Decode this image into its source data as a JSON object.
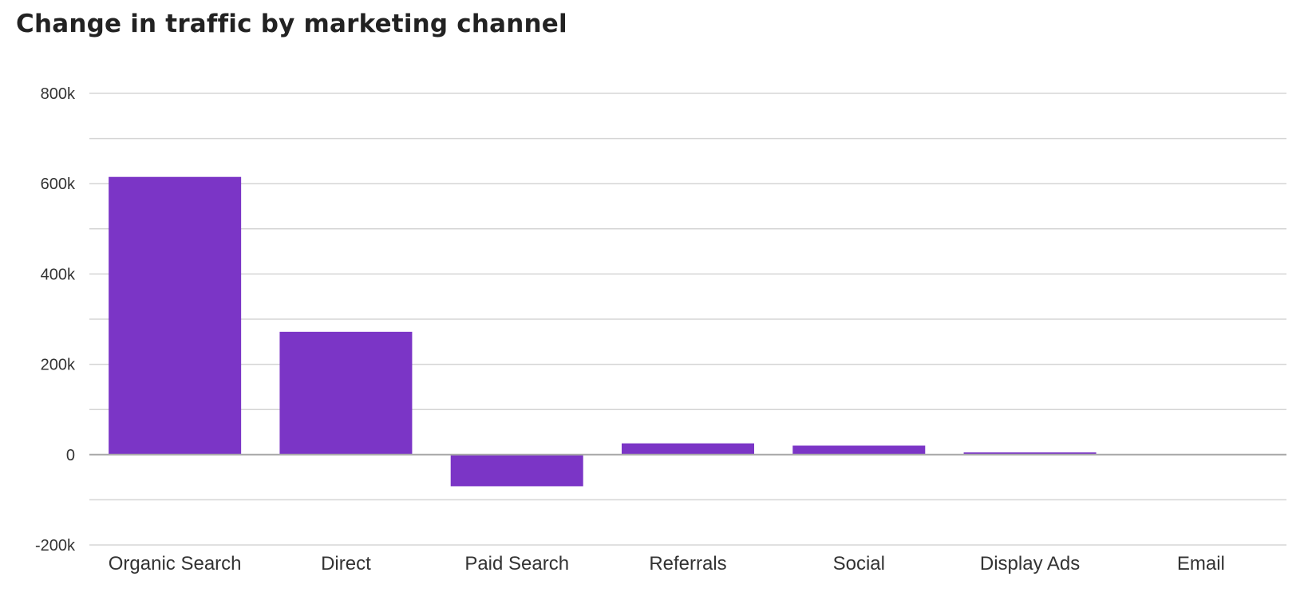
{
  "chart_data": {
    "type": "bar",
    "title": "Change in traffic by marketing channel",
    "xlabel": "",
    "ylabel": "",
    "categories": [
      "Organic Search",
      "Direct",
      "Paid Search",
      "Referrals",
      "Social",
      "Display Ads",
      "Email"
    ],
    "series": [
      {
        "values": [
          615000,
          272000,
          -70000,
          25000,
          20000,
          5000,
          0
        ]
      }
    ],
    "ylim": [
      -200000,
      800000
    ],
    "yticks": [
      -200000,
      0,
      200000,
      400000,
      600000,
      800000
    ],
    "ytick_labels": [
      "-200k",
      "0",
      "200k",
      "400k",
      "600k",
      "800k"
    ],
    "minor_gridlines": [
      -100000,
      100000,
      300000,
      500000,
      700000
    ],
    "grid": true,
    "legend": "none",
    "colors": {
      "bar": "#7b35c6",
      "grid": "#d5d5d5",
      "zero_line": "#a8a8a8",
      "text": "#333333",
      "title": "#222222"
    }
  }
}
